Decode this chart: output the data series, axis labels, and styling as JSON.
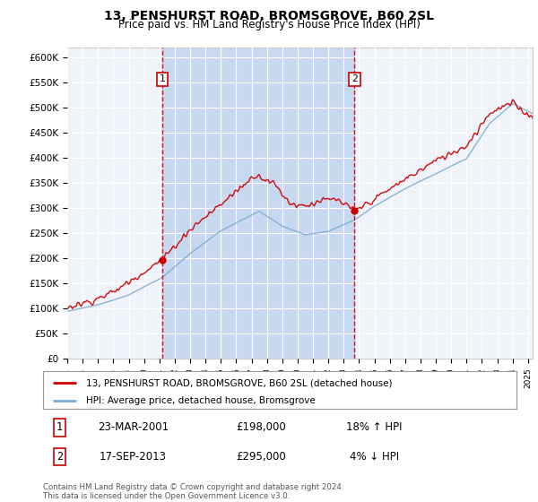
{
  "title": "13, PENSHURST ROAD, BROMSGROVE, B60 2SL",
  "subtitle": "Price paid vs. HM Land Registry's House Price Index (HPI)",
  "ylabel_ticks": [
    "£0",
    "£50K",
    "£100K",
    "£150K",
    "£200K",
    "£250K",
    "£300K",
    "£350K",
    "£400K",
    "£450K",
    "£500K",
    "£550K",
    "£600K"
  ],
  "ylim": [
    0,
    620000
  ],
  "ytick_vals": [
    0,
    50000,
    100000,
    150000,
    200000,
    250000,
    300000,
    350000,
    400000,
    450000,
    500000,
    550000,
    600000
  ],
  "background_color": "#dce6f5",
  "plot_bg_color": "#f0f4fa",
  "grid_color": "#ffffff",
  "sale1_date": 2001.19,
  "sale1_price": 198000,
  "sale1_label": "1",
  "sale2_date": 2013.71,
  "sale2_price": 295000,
  "sale2_label": "2",
  "hpi_color": "#7aadd4",
  "price_color": "#cc0000",
  "vline_color": "#cc0000",
  "shade_color": "#c8d8f0",
  "legend_label_price": "13, PENSHURST ROAD, BROMSGROVE, B60 2SL (detached house)",
  "legend_label_hpi": "HPI: Average price, detached house, Bromsgrove",
  "table_row1": [
    "1",
    "23-MAR-2001",
    "£198,000",
    "18% ↑ HPI"
  ],
  "table_row2": [
    "2",
    "17-SEP-2013",
    "£295,000",
    "4% ↓ HPI"
  ],
  "footnote": "Contains HM Land Registry data © Crown copyright and database right 2024.\nThis data is licensed under the Open Government Licence v3.0.",
  "xmin": 1995.0,
  "xmax": 2025.3
}
